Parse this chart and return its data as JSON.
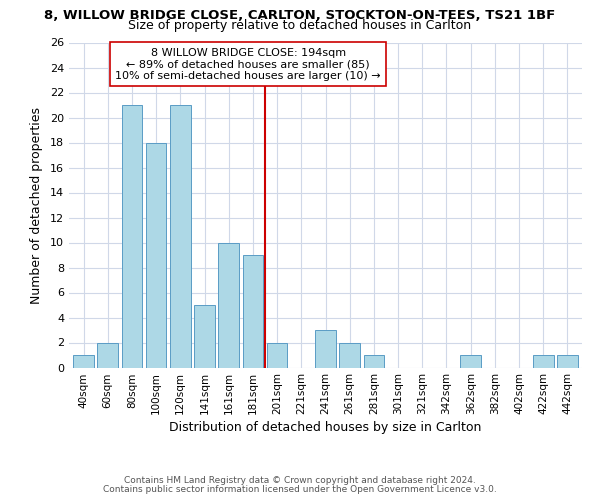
{
  "title": "8, WILLOW BRIDGE CLOSE, CARLTON, STOCKTON-ON-TEES, TS21 1BF",
  "subtitle": "Size of property relative to detached houses in Carlton",
  "xlabel": "Distribution of detached houses by size in Carlton",
  "ylabel": "Number of detached properties",
  "bar_labels": [
    "40sqm",
    "60sqm",
    "80sqm",
    "100sqm",
    "120sqm",
    "141sqm",
    "161sqm",
    "181sqm",
    "201sqm",
    "221sqm",
    "241sqm",
    "261sqm",
    "281sqm",
    "301sqm",
    "321sqm",
    "342sqm",
    "362sqm",
    "382sqm",
    "402sqm",
    "422sqm",
    "442sqm"
  ],
  "bar_values": [
    1,
    2,
    21,
    18,
    21,
    5,
    10,
    9,
    2,
    0,
    3,
    2,
    1,
    0,
    0,
    0,
    1,
    0,
    0,
    1,
    1
  ],
  "bar_color": "#add8e6",
  "bar_edge_color": "#5a9cc5",
  "vline_x": 7.5,
  "vline_color": "#cc0000",
  "annotation_text": "8 WILLOW BRIDGE CLOSE: 194sqm\n← 89% of detached houses are smaller (85)\n10% of semi-detached houses are larger (10) →",
  "annotation_box_edge": "#cc0000",
  "annotation_box_bg": "#ffffff",
  "ylim": [
    0,
    26
  ],
  "yticks": [
    0,
    2,
    4,
    6,
    8,
    10,
    12,
    14,
    16,
    18,
    20,
    22,
    24,
    26
  ],
  "footer1": "Contains HM Land Registry data © Crown copyright and database right 2024.",
  "footer2": "Contains public sector information licensed under the Open Government Licence v3.0.",
  "bg_color": "#ffffff",
  "grid_color": "#d0d8e8"
}
